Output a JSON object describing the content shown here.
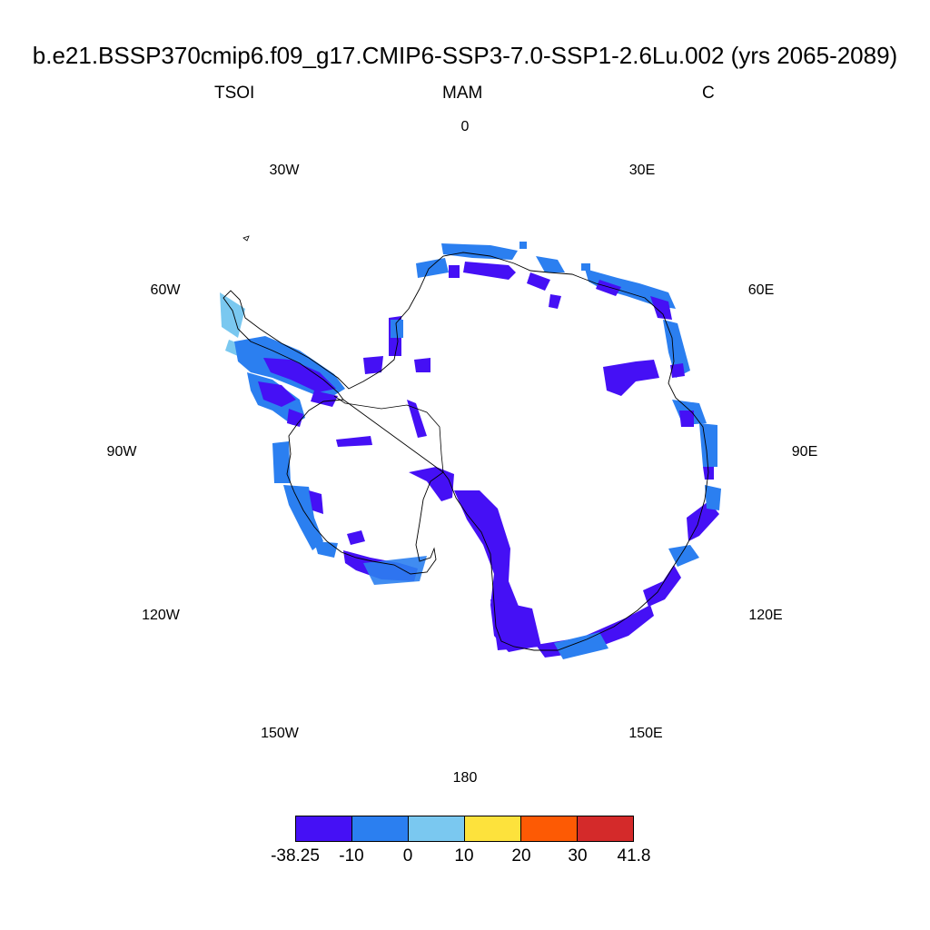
{
  "title": "b.e21.BSSP370cmip6.f09_g17.CMIP6-SSP3-7.0-SSP1-2.6Lu.002 (yrs 2065-2089)",
  "left_label": "TSOI",
  "center_label": "MAM",
  "right_label": "C",
  "longitude_labels": [
    "0",
    "30E",
    "60E",
    "90E",
    "120E",
    "150E",
    "180",
    "150W",
    "120W",
    "90W",
    "60W",
    "30W"
  ],
  "colorbar": {
    "colors": [
      "#4510f5",
      "#2b7ff0",
      "#7ac8f0",
      "#fde23c",
      "#fd5a04",
      "#d42a2a"
    ],
    "labels": [
      "-38.25",
      "-10",
      "0",
      "10",
      "20",
      "30",
      "41.8"
    ]
  }
}
